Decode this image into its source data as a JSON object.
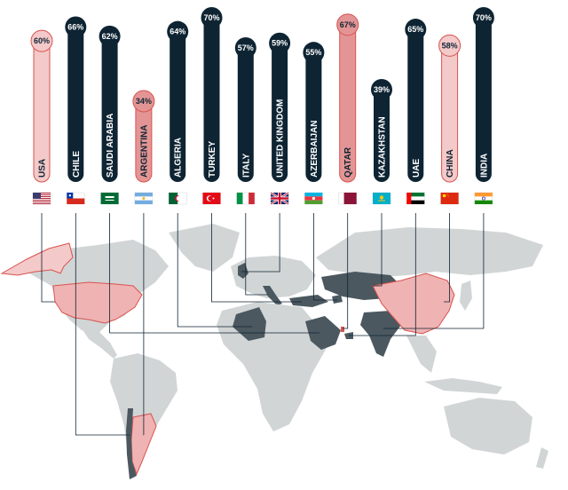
{
  "chart_data": {
    "type": "bar",
    "categories": [
      "USA",
      "CHILE",
      "SAUDI ARABIA",
      "ARGENTINA",
      "ALGERIA",
      "TURKEY",
      "ITALY",
      "UNITED KINGDOM",
      "AZERBAIJAN",
      "QATAR",
      "KAZAKHSTAN",
      "UAE",
      "CHINA",
      "INDIA"
    ],
    "values": [
      60,
      66,
      62,
      34,
      64,
      70,
      57,
      59,
      55,
      67,
      39,
      65,
      58,
      70
    ],
    "value_labels": [
      "60%",
      "66%",
      "62%",
      "34%",
      "64%",
      "70%",
      "57%",
      "59%",
      "55%",
      "67%",
      "39%",
      "65%",
      "58%",
      "70%"
    ],
    "category_style": [
      "light",
      "dark",
      "dark",
      "mid",
      "dark",
      "dark",
      "dark",
      "dark",
      "dark",
      "mid",
      "dark",
      "dark",
      "light",
      "dark"
    ],
    "ylim": [
      0,
      70
    ],
    "colors": {
      "dark": "#0e2433",
      "light": "#f3c9c9",
      "mid": "#e39595",
      "map_land": "#d1d5d6",
      "map_dark": "#4b5860",
      "map_pink": "#efb3b3",
      "map_red": "#d9534f"
    }
  },
  "flags": [
    "us-flag-icon",
    "chile-flag-icon",
    "saudi-arabia-flag-icon",
    "argentina-flag-icon",
    "algeria-flag-icon",
    "turkey-flag-icon",
    "italy-flag-icon",
    "uk-flag-icon",
    "azerbaijan-flag-icon",
    "qatar-flag-icon",
    "kazakhstan-flag-icon",
    "uae-flag-icon",
    "china-flag-icon",
    "india-flag-icon"
  ]
}
